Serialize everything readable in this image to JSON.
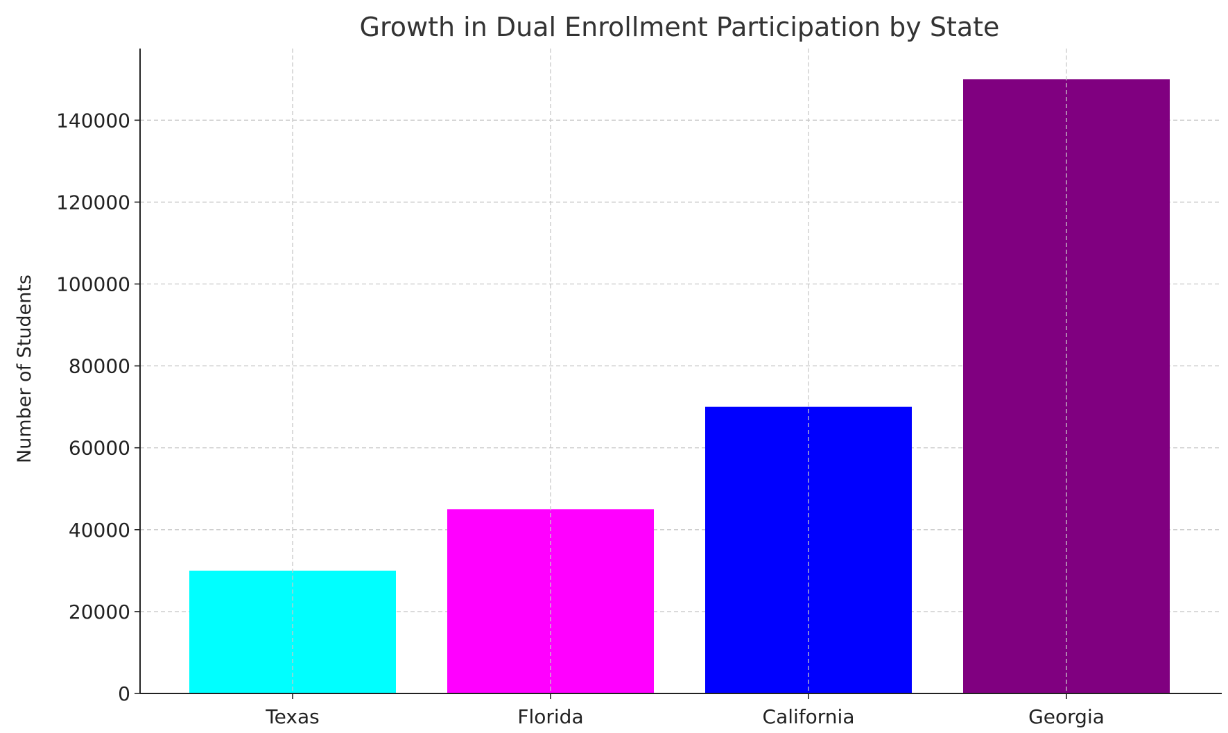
{
  "chart_data": {
    "type": "bar",
    "title": "Growth in Dual Enrollment Participation by State",
    "xlabel": "",
    "ylabel": "Number of Students",
    "categories": [
      "Texas",
      "Florida",
      "California",
      "Georgia"
    ],
    "values": [
      30000,
      45000,
      70000,
      150000
    ],
    "colors": [
      "#00ffff",
      "#ff00ff",
      "#0000ff",
      "#800080"
    ],
    "ylim": [
      0,
      157500
    ],
    "yticks": [
      0,
      20000,
      40000,
      60000,
      80000,
      100000,
      120000,
      140000
    ],
    "grid": true
  }
}
